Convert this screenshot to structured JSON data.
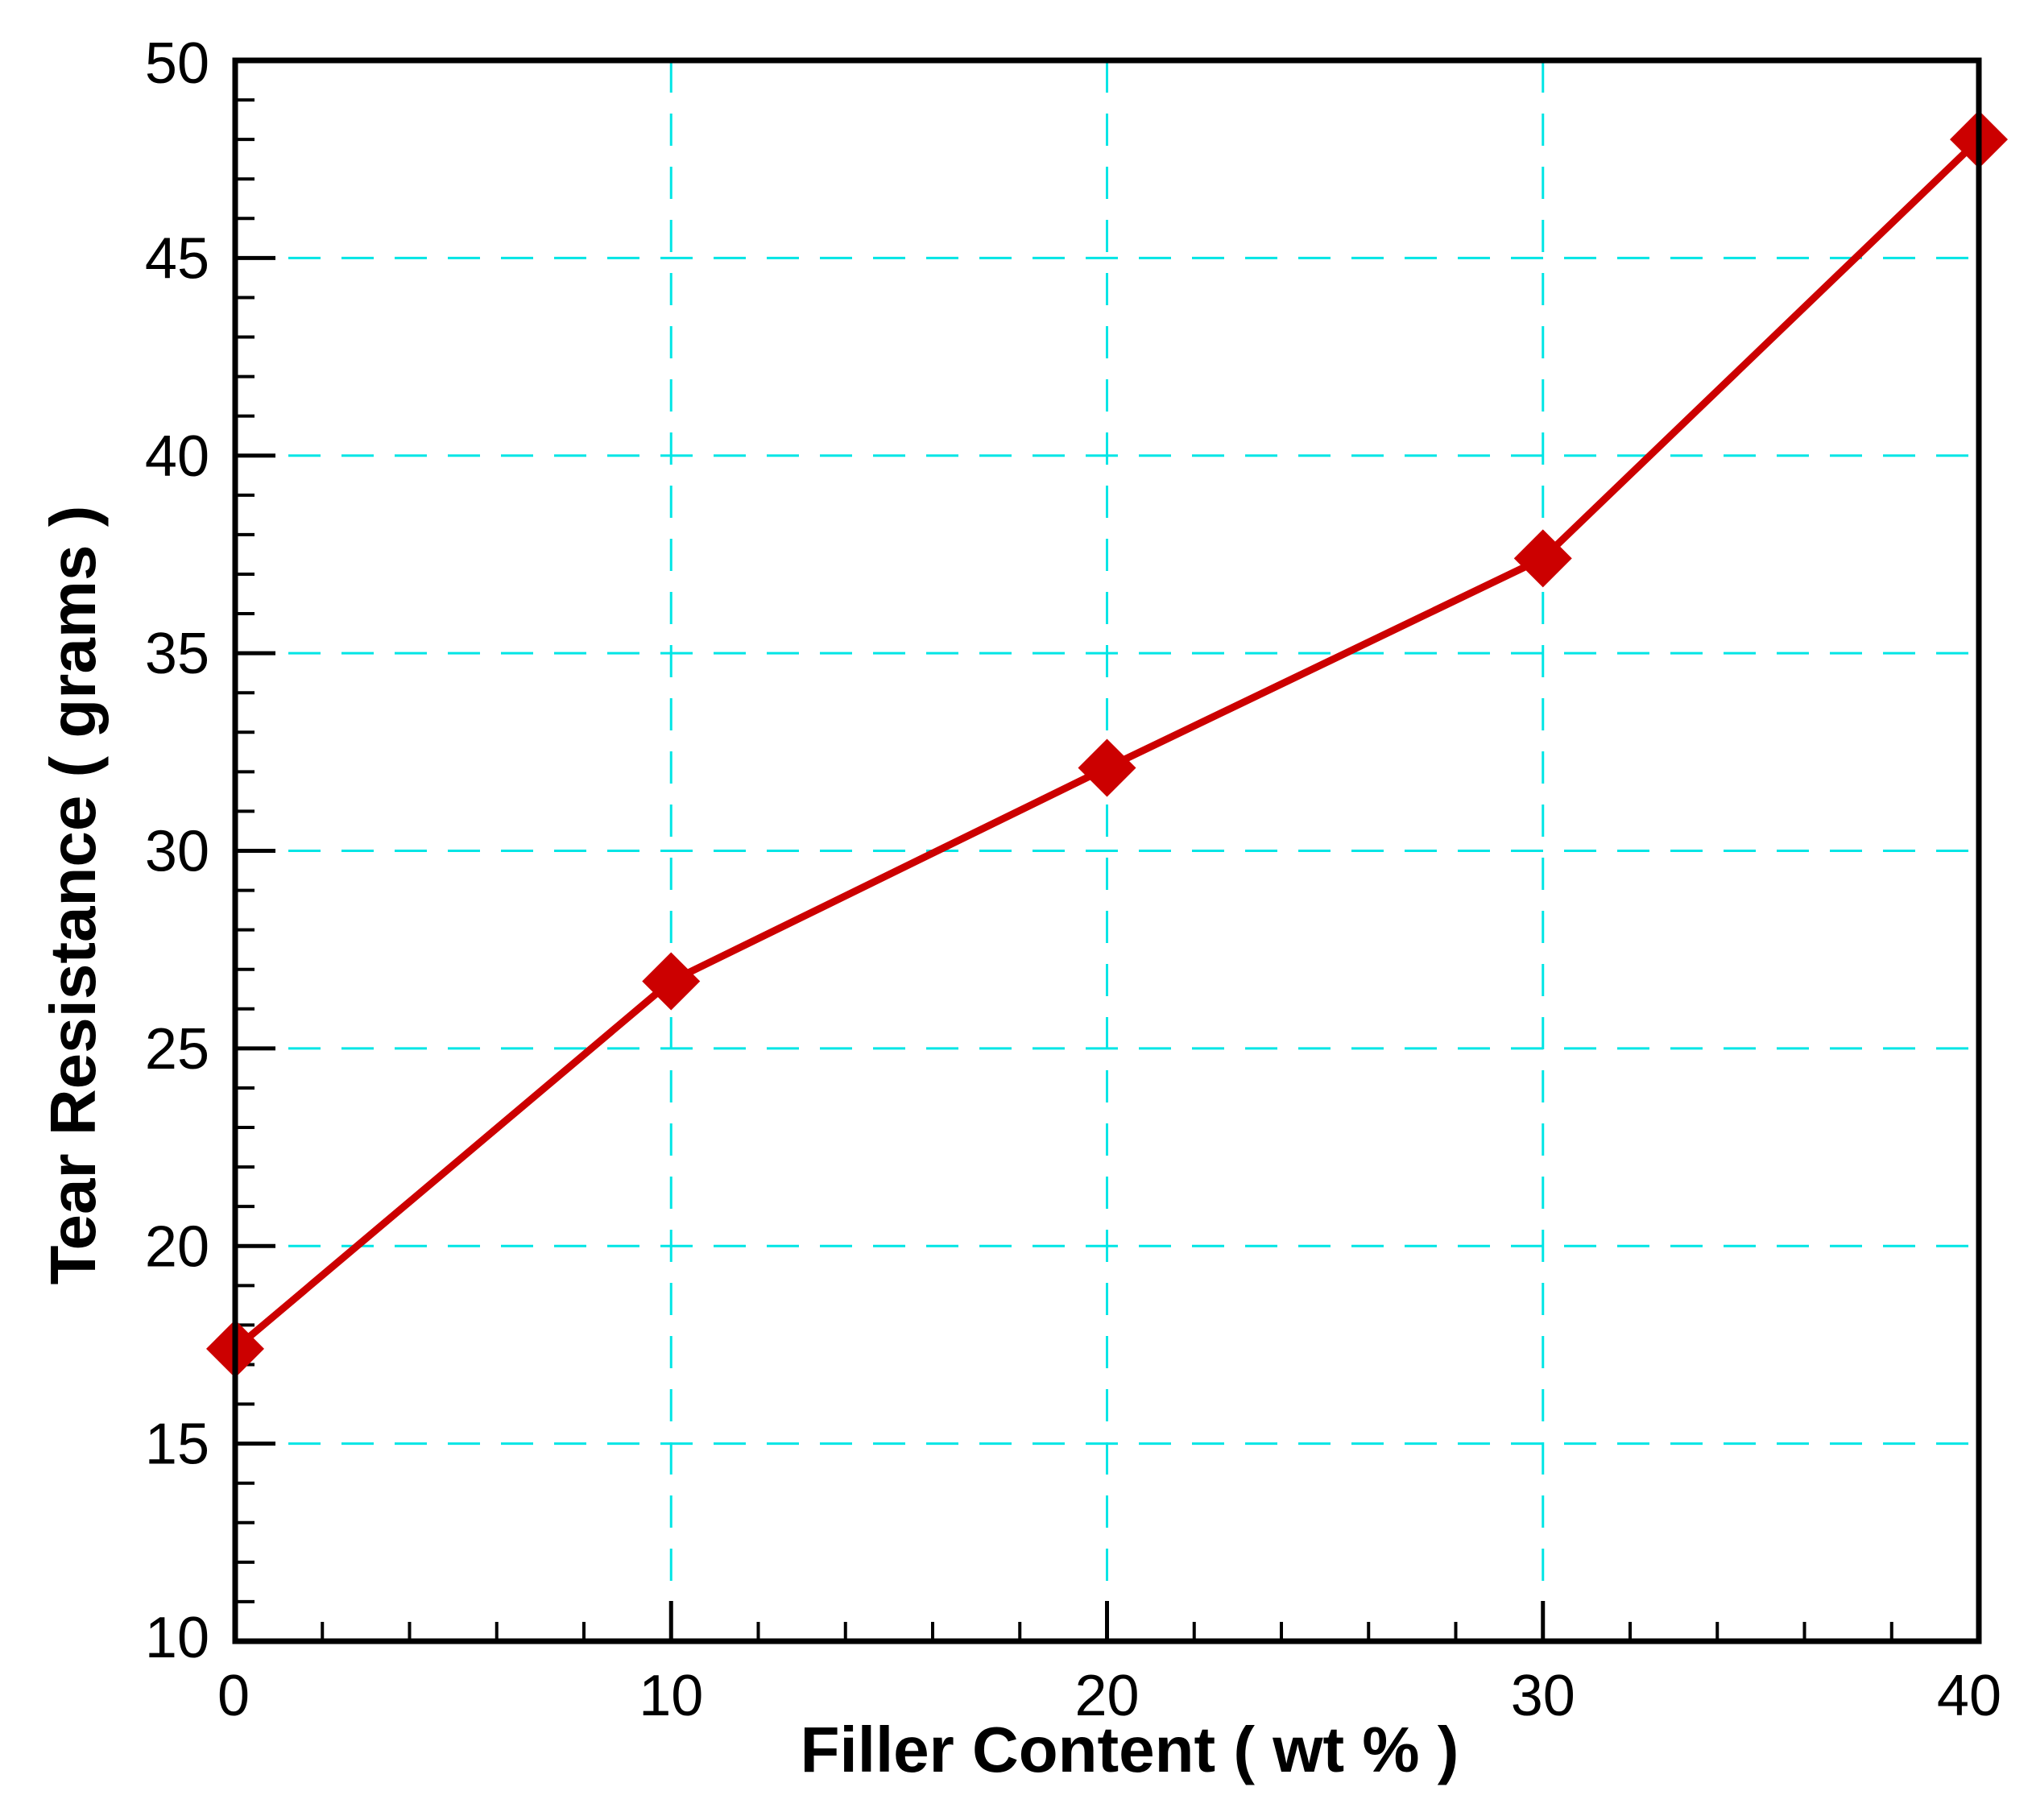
{
  "chart_data": {
    "type": "line",
    "title": "",
    "xlabel": "Filler Content ( wt % )",
    "ylabel": "Tear Resistance ( grams )",
    "xlim": [
      0,
      40
    ],
    "ylim": [
      10,
      50
    ],
    "x_ticks": [
      0,
      10,
      20,
      30,
      40
    ],
    "y_ticks": [
      10,
      15,
      20,
      25,
      30,
      35,
      40,
      45,
      50
    ],
    "x_minor_step": 2,
    "y_minor_step": 1,
    "grid": true,
    "legend": "none",
    "series": [
      {
        "x": [
          0,
          10,
          20,
          30,
          40
        ],
        "y": [
          17.4,
          26.7,
          32.1,
          37.4,
          48.0
        ],
        "color": "#cc0000",
        "marker": "diamond"
      }
    ]
  },
  "colors": {
    "grid": "#00e5e5",
    "axis": "#000000",
    "series": "#cc0000"
  }
}
